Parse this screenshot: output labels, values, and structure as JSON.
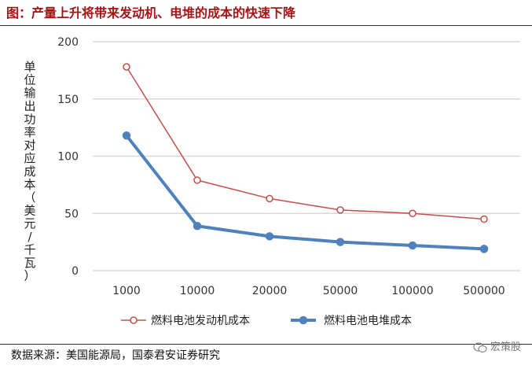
{
  "title": "图：产量上升将带来发动机、电堆的成本的快速下降",
  "source": "数据来源：美国能源局，国泰君安证券研究",
  "watermark": "宏策股",
  "chart_data": {
    "type": "line",
    "ylabel": "单位输出功率对应成本（美元/千瓦）",
    "xlabel": "",
    "categories": [
      "1000",
      "10000",
      "20000",
      "50000",
      "100000",
      "500000"
    ],
    "yticks": [
      0,
      50,
      100,
      150,
      200
    ],
    "ylim": [
      0,
      200
    ],
    "grid": true,
    "legend_position": "bottom",
    "series": [
      {
        "name": "燃料电池发动机成本",
        "values": [
          178,
          79,
          63,
          53,
          50,
          45
        ],
        "color": "#c0504d",
        "marker": "hollow-circle"
      },
      {
        "name": "燃料电池电堆成本",
        "values": [
          118,
          39,
          30,
          25,
          22,
          19
        ],
        "color": "#4f81bd",
        "marker": "filled-circle"
      }
    ]
  }
}
